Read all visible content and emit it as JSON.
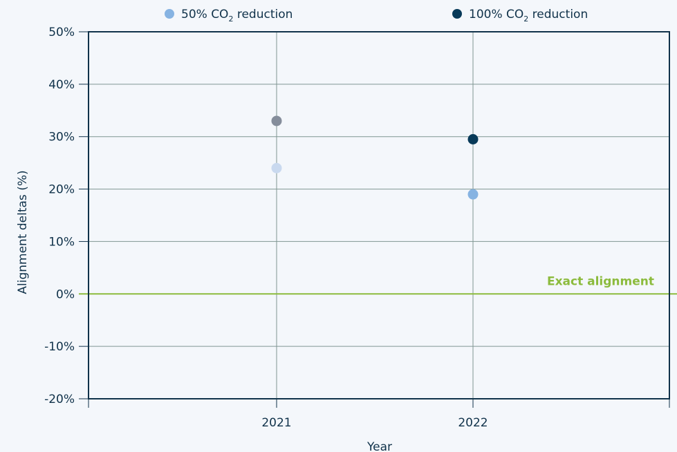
{
  "chart_data": {
    "type": "scatter",
    "xlabel": "Year",
    "ylabel": "Alignment deltas (%)",
    "categories": [
      "2021",
      "2022"
    ],
    "ylim": [
      -20,
      50
    ],
    "yticks": [
      "50%",
      "40%",
      "30%",
      "20%",
      "10%",
      "0%",
      "-10%",
      "-20%"
    ],
    "grid": true,
    "legend_position": "top",
    "series": [
      {
        "name": "50% CO₂ reduction",
        "legend_text": "50% CO",
        "legend_sub": "2",
        "legend_suffix": " reduction",
        "color": "#86b3e2",
        "values": [
          24,
          19
        ]
      },
      {
        "name": "100% CO₂ reduction",
        "legend_text": "100% CO",
        "legend_sub": "2",
        "legend_suffix": " reduction",
        "color": "#083a59",
        "values": [
          33,
          29.5
        ]
      }
    ],
    "point_colors": {
      "2021": [
        "#c9d9ef",
        "#858d9b"
      ],
      "2022": [
        "#86b3e2",
        "#083a59"
      ]
    },
    "reference_line": {
      "y": 0,
      "label": "Exact alignment",
      "color": "#8cbb3d"
    },
    "colors": {
      "axis": "#10324a",
      "grid": "#7f9692",
      "background": "#f4f7fb"
    }
  }
}
